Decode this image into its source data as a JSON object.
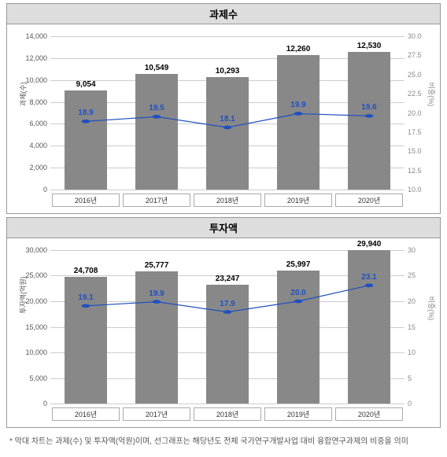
{
  "chart1": {
    "type": "bar+line",
    "title": "과제수",
    "categories": [
      "2016년",
      "2017년",
      "2018년",
      "2019년",
      "2020년"
    ],
    "bar_values": [
      9054,
      10549,
      10293,
      12260,
      12530
    ],
    "bar_labels": [
      "9,054",
      "10,549",
      "10,293",
      "12,260",
      "12,530"
    ],
    "bar_color": "#888888",
    "line_values": [
      18.9,
      19.5,
      18.1,
      19.9,
      19.6
    ],
    "line_labels": [
      "18.9",
      "19.5",
      "18.1",
      "19.9",
      "19.6"
    ],
    "line_color": "#2050c0",
    "y_left": {
      "min": 0,
      "max": 14000,
      "step": 2000,
      "label": "과제(수)",
      "ticks": [
        "0",
        "2,000",
        "4,000",
        "6,000",
        "8,000",
        "10,000",
        "12,000",
        "14,000"
      ]
    },
    "y_right": {
      "min": 10.0,
      "max": 30.0,
      "step": 2.5,
      "label": "비중(%)",
      "ticks": [
        "10.0",
        "12.5",
        "15.0",
        "17.5",
        "20.0",
        "22.5",
        "25.0",
        "27.5",
        "30.0"
      ]
    },
    "grid_color": "#cccccc",
    "background_color": "#ffffff"
  },
  "chart2": {
    "type": "bar+line",
    "title": "투자액",
    "categories": [
      "2016년",
      "2017년",
      "2018년",
      "2019년",
      "2020년"
    ],
    "bar_values": [
      24708,
      25777,
      23247,
      25997,
      29940
    ],
    "bar_labels": [
      "24,708",
      "25,777",
      "23,247",
      "25,997",
      "29,940"
    ],
    "bar_color": "#888888",
    "line_values": [
      19.1,
      19.9,
      17.9,
      20.0,
      23.1
    ],
    "line_labels": [
      "19.1",
      "19.9",
      "17.9",
      "20.0",
      "23.1"
    ],
    "line_color": "#2050c0",
    "y_left": {
      "min": 0,
      "max": 30000,
      "step": 5000,
      "label": "투자액(억원)",
      "ticks": [
        "0",
        "5,000",
        "10,000",
        "15,000",
        "20,000",
        "25,000",
        "30,000"
      ]
    },
    "y_right": {
      "min": 0,
      "max": 30,
      "step": 5,
      "label": "비중(%)",
      "ticks": [
        "0",
        "5",
        "10",
        "15",
        "20",
        "25",
        "30"
      ]
    },
    "grid_color": "#cccccc",
    "background_color": "#ffffff"
  },
  "footnote": "* 막대 차트는 과제(수) 및 투자액(억원)이며, 선그래프는 해당년도 전체 국가연구개발사업 대비 융합연구과제의 비중을 의미"
}
